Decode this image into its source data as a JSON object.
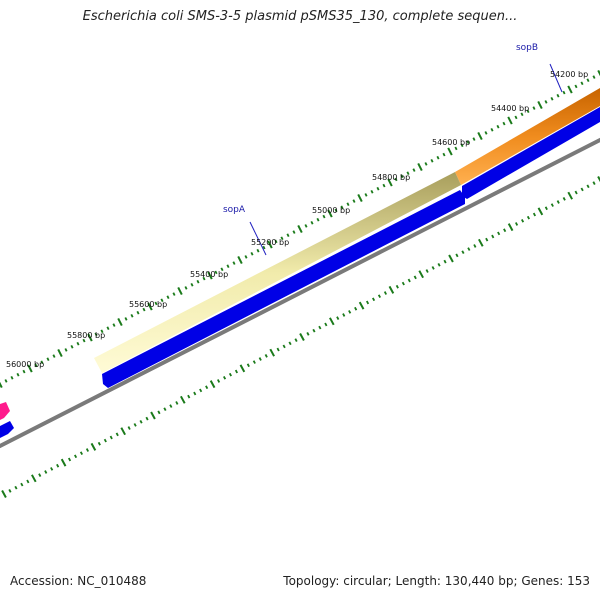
{
  "title": "Escherichia coli SMS-3-5 plasmid pSMS35_130, complete sequen...",
  "footer": {
    "accession": "Accession: NC_010488",
    "summary": "Topology: circular; Length: 130,440 bp; Genes: 153"
  },
  "ruler": {
    "labels": [
      "54200 bp",
      "54400 bp",
      "54600 bp",
      "54800 bp",
      "55000 bp",
      "55200 bp",
      "55400 bp",
      "55600 bp",
      "55800 bp",
      "56000 bp"
    ]
  },
  "genes": [
    {
      "label": "sopB",
      "color": "#f08000"
    },
    {
      "label": "sopA",
      "color": "#f4eeaa"
    }
  ],
  "colors": {
    "tick": "#1a7a1a",
    "cds": "#0000e6",
    "backbone": "#7a7a7a",
    "label_line": "#2020c0",
    "other_feature": "#ff1a8c"
  }
}
